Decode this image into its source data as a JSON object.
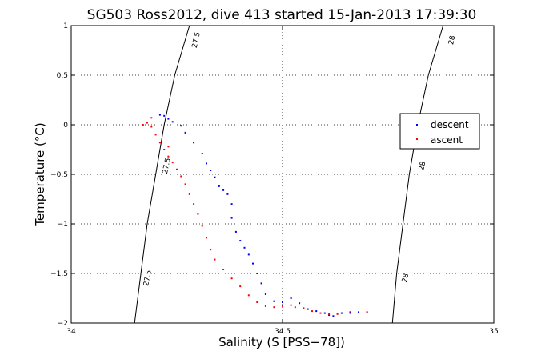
{
  "chart_data": {
    "type": "scatter",
    "title": "SG503 Ross2012, dive 413 started 15-Jan-2013 17:39:30",
    "xlabel": "Salinity (S [PSS−78])",
    "ylabel": "Temperature (°C)",
    "xlim": [
      34,
      35
    ],
    "ylim": [
      -2,
      1
    ],
    "xticks": [
      34,
      34.5,
      35
    ],
    "xtick_labels": [
      "34",
      "34.5",
      "35"
    ],
    "yticks": [
      -2,
      -1.5,
      -1,
      -0.5,
      0,
      0.5,
      1
    ],
    "ytick_labels": [
      "−2",
      "−1.5",
      "−1",
      "−0.5",
      "0",
      "0.5",
      "1"
    ],
    "grid": true,
    "legend_position": "right",
    "series": [
      {
        "name": "descent",
        "color": "#0000ff",
        "points": [
          [
            34.21,
            0.1
          ],
          [
            34.22,
            0.09
          ],
          [
            34.23,
            0.06
          ],
          [
            34.24,
            0.03
          ],
          [
            34.26,
            -0.01
          ],
          [
            34.27,
            -0.08
          ],
          [
            34.29,
            -0.18
          ],
          [
            34.31,
            -0.29
          ],
          [
            34.32,
            -0.39
          ],
          [
            34.33,
            -0.46
          ],
          [
            34.34,
            -0.53
          ],
          [
            34.35,
            -0.62
          ],
          [
            34.36,
            -0.66
          ],
          [
            34.37,
            -0.7
          ],
          [
            34.38,
            -0.8
          ],
          [
            34.38,
            -0.94
          ],
          [
            34.39,
            -1.08
          ],
          [
            34.4,
            -1.17
          ],
          [
            34.41,
            -1.24
          ],
          [
            34.42,
            -1.31
          ],
          [
            34.43,
            -1.4
          ],
          [
            34.44,
            -1.5
          ],
          [
            34.45,
            -1.6
          ],
          [
            34.46,
            -1.71
          ],
          [
            34.48,
            -1.78
          ],
          [
            34.5,
            -1.79
          ],
          [
            34.52,
            -1.75
          ],
          [
            34.54,
            -1.8
          ],
          [
            34.56,
            -1.86
          ],
          [
            34.58,
            -1.88
          ],
          [
            34.6,
            -1.9
          ],
          [
            34.61,
            -1.92
          ],
          [
            34.62,
            -1.93
          ],
          [
            34.64,
            -1.9
          ],
          [
            34.66,
            -1.89
          ],
          [
            34.68,
            -1.89
          ],
          [
            34.7,
            -1.89
          ]
        ]
      },
      {
        "name": "ascent",
        "color": "#ff0000",
        "points": [
          [
            34.17,
            0.0
          ],
          [
            34.18,
            0.02
          ],
          [
            34.19,
            0.07
          ],
          [
            34.19,
            -0.02
          ],
          [
            34.2,
            -0.1
          ],
          [
            34.21,
            -0.18
          ],
          [
            34.22,
            -0.25
          ],
          [
            34.23,
            -0.22
          ],
          [
            34.23,
            -0.32
          ],
          [
            34.24,
            -0.38
          ],
          [
            34.25,
            -0.45
          ],
          [
            34.26,
            -0.52
          ],
          [
            34.27,
            -0.6
          ],
          [
            34.28,
            -0.7
          ],
          [
            34.29,
            -0.8
          ],
          [
            34.3,
            -0.9
          ],
          [
            34.31,
            -1.02
          ],
          [
            34.32,
            -1.14
          ],
          [
            34.33,
            -1.26
          ],
          [
            34.34,
            -1.36
          ],
          [
            34.36,
            -1.46
          ],
          [
            34.38,
            -1.55
          ],
          [
            34.4,
            -1.63
          ],
          [
            34.42,
            -1.72
          ],
          [
            34.44,
            -1.79
          ],
          [
            34.46,
            -1.83
          ],
          [
            34.48,
            -1.84
          ],
          [
            34.5,
            -1.83
          ],
          [
            34.52,
            -1.82
          ],
          [
            34.53,
            -1.84
          ],
          [
            34.55,
            -1.85
          ],
          [
            34.57,
            -1.88
          ],
          [
            34.59,
            -1.9
          ],
          [
            34.61,
            -1.91
          ],
          [
            34.63,
            -1.91
          ],
          [
            34.66,
            -1.9
          ],
          [
            34.7,
            -1.89
          ]
        ]
      }
    ],
    "contours": [
      {
        "label": "27.5",
        "points": [
          [
            34.15,
            -2.0
          ],
          [
            34.165,
            -1.5
          ],
          [
            34.18,
            -1.0
          ],
          [
            34.2,
            -0.5
          ],
          [
            34.22,
            0.0
          ],
          [
            34.245,
            0.5
          ],
          [
            34.28,
            1.0
          ]
        ],
        "label_positions": [
          [
            34.18,
            -1.55
          ],
          [
            34.225,
            -0.42
          ],
          [
            34.295,
            0.85
          ]
        ]
      },
      {
        "label": "28",
        "points": [
          [
            34.76,
            -2.0
          ],
          [
            34.77,
            -1.5
          ],
          [
            34.785,
            -1.0
          ],
          [
            34.8,
            -0.5
          ],
          [
            34.82,
            0.0
          ],
          [
            34.845,
            0.5
          ],
          [
            34.88,
            1.0
          ]
        ],
        "label_positions": [
          [
            34.79,
            -1.55
          ],
          [
            34.83,
            -0.42
          ],
          [
            34.9,
            0.85
          ]
        ]
      }
    ]
  }
}
